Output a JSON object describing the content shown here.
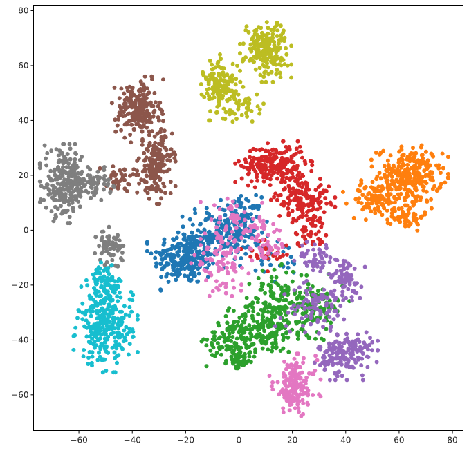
{
  "chart_data": {
    "type": "scatter",
    "title": "",
    "xlabel": "",
    "ylabel": "",
    "xlim": [
      -77,
      84
    ],
    "ylim": [
      -73,
      82
    ],
    "xticks": [
      -60,
      -40,
      -20,
      0,
      20,
      40,
      60,
      80
    ],
    "yticks": [
      -60,
      -40,
      -20,
      0,
      20,
      40,
      60,
      80
    ],
    "grid": false,
    "legend": "none",
    "clusters": [
      {
        "color": "#1f77b4",
        "blobs": [
          {
            "cx": -20,
            "cy": -10,
            "sx": 6,
            "sy": 5,
            "n": 230
          },
          {
            "cx": -6,
            "cy": -1,
            "sx": 7,
            "sy": 5,
            "n": 190
          },
          {
            "cx": 2,
            "cy": 4,
            "sx": 3,
            "sy": 4,
            "n": 60
          },
          {
            "cx": 15,
            "cy": -12,
            "sx": 6,
            "sy": 4,
            "n": 25
          }
        ]
      },
      {
        "color": "#ff7f0e",
        "blobs": [
          {
            "cx": 64,
            "cy": 20,
            "sx": 6,
            "sy": 5,
            "n": 260
          },
          {
            "cx": 51,
            "cy": 11,
            "sx": 5,
            "sy": 3,
            "n": 90
          },
          {
            "cx": 63,
            "cy": 5,
            "sx": 3,
            "sy": 2.5,
            "n": 50
          }
        ]
      },
      {
        "color": "#2ca02c",
        "blobs": [
          {
            "cx": 10,
            "cy": -35,
            "sx": 6,
            "sy": 5,
            "n": 170
          },
          {
            "cx": -2,
            "cy": -40,
            "sx": 5,
            "sy": 4,
            "n": 110
          },
          {
            "cx": 27,
            "cy": -28,
            "sx": 6,
            "sy": 5,
            "n": 130
          },
          {
            "cx": 0,
            "cy": -48,
            "sx": 2,
            "sy": 1.5,
            "n": 30
          },
          {
            "cx": 15,
            "cy": -22,
            "sx": 5,
            "sy": 4,
            "n": 60
          }
        ]
      },
      {
        "color": "#d62728",
        "blobs": [
          {
            "cx": 13,
            "cy": 24,
            "sx": 6,
            "sy": 3.5,
            "n": 220
          },
          {
            "cx": 24,
            "cy": 12,
            "sx": 5,
            "sy": 4,
            "n": 140
          },
          {
            "cx": 26,
            "cy": 0,
            "sx": 3,
            "sy": 3,
            "n": 50
          },
          {
            "cx": 10,
            "cy": -8,
            "sx": 5,
            "sy": 3,
            "n": 25
          }
        ]
      },
      {
        "color": "#9467bd",
        "blobs": [
          {
            "cx": 40,
            "cy": -45,
            "sx": 5,
            "sy": 4,
            "n": 170
          },
          {
            "cx": 40,
            "cy": -18,
            "sx": 3,
            "sy": 4,
            "n": 70
          },
          {
            "cx": 28,
            "cy": -28,
            "sx": 6,
            "sy": 4,
            "n": 80
          },
          {
            "cx": 30,
            "cy": -10,
            "sx": 4,
            "sy": 3,
            "n": 50
          }
        ]
      },
      {
        "color": "#8c564b",
        "blobs": [
          {
            "cx": -38,
            "cy": 44,
            "sx": 4,
            "sy": 5,
            "n": 200
          },
          {
            "cx": -31,
            "cy": 24,
            "sx": 3,
            "sy": 6,
            "n": 170
          },
          {
            "cx": -44,
            "cy": 19,
            "sx": 4,
            "sy": 2,
            "n": 40
          }
        ]
      },
      {
        "color": "#e377c2",
        "blobs": [
          {
            "cx": 21,
            "cy": -57,
            "sx": 4,
            "sy": 5,
            "n": 160
          },
          {
            "cx": -7,
            "cy": -12,
            "sx": 5,
            "sy": 5,
            "n": 90
          },
          {
            "cx": 0,
            "cy": 2,
            "sx": 6,
            "sy": 5,
            "n": 60
          },
          {
            "cx": 10,
            "cy": -5,
            "sx": 4,
            "sy": 3,
            "n": 40
          }
        ]
      },
      {
        "color": "#7f7f7f",
        "blobs": [
          {
            "cx": -65,
            "cy": 17,
            "sx": 4,
            "sy": 6,
            "n": 240
          },
          {
            "cx": -54,
            "cy": 17,
            "sx": 3,
            "sy": 2.5,
            "n": 55
          },
          {
            "cx": -48,
            "cy": -6,
            "sx": 2.5,
            "sy": 3,
            "n": 60
          }
        ]
      },
      {
        "color": "#bcbd22",
        "blobs": [
          {
            "cx": 10,
            "cy": 66,
            "sx": 4,
            "sy": 5,
            "n": 190
          },
          {
            "cx": -7,
            "cy": 52,
            "sx": 3,
            "sy": 5,
            "n": 140
          },
          {
            "cx": 2,
            "cy": 45,
            "sx": 3,
            "sy": 3,
            "n": 35
          }
        ]
      },
      {
        "color": "#17becf",
        "blobs": [
          {
            "cx": -50,
            "cy": -35,
            "sx": 5,
            "sy": 7,
            "n": 280
          },
          {
            "cx": -50,
            "cy": -19,
            "sx": 3,
            "sy": 3,
            "n": 70
          }
        ]
      }
    ]
  }
}
